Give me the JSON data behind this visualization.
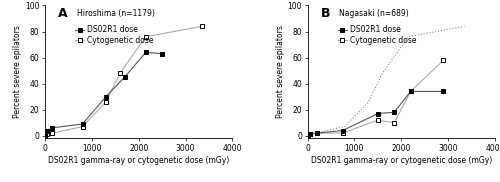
{
  "panel_A": {
    "title": "A",
    "subtitle": "Hiroshima (n=1179)",
    "ds02r1_x": [
      0,
      50,
      150,
      800,
      1300,
      1700,
      2150,
      2500
    ],
    "ds02r1_y": [
      0,
      4,
      6,
      9,
      30,
      45,
      64,
      63
    ],
    "cyto_x": [
      0,
      50,
      150,
      800,
      1300,
      1600,
      2150,
      3350
    ],
    "cyto_y": [
      0,
      1,
      2,
      7,
      26,
      48,
      76,
      84
    ]
  },
  "panel_B": {
    "title": "B",
    "subtitle": "Nagasaki (n=689)",
    "ds02r1_x": [
      0,
      50,
      200,
      750,
      1500,
      1850,
      2200,
      2900
    ],
    "ds02r1_y": [
      0,
      1,
      2,
      4,
      17,
      18,
      34,
      34
    ],
    "cyto_x": [
      0,
      50,
      200,
      750,
      1500,
      1850,
      2200,
      2900
    ],
    "cyto_y": [
      0,
      1,
      2,
      2,
      12,
      10,
      34,
      58
    ],
    "hiroshima_cyto_x": [
      0,
      50,
      150,
      800,
      1300,
      1600,
      2150,
      3350
    ],
    "hiroshima_cyto_y": [
      0,
      1,
      2,
      7,
      26,
      48,
      76,
      84
    ]
  },
  "xlabel": "DS02R1 gamma-ray or cytogenetic dose (mGy)",
  "ylabel": "Percent severe epilators",
  "xlim": [
    0,
    4000
  ],
  "ylim": [
    -2,
    100
  ],
  "xticks": [
    0,
    1000,
    2000,
    3000,
    4000
  ],
  "yticks": [
    0,
    20,
    40,
    60,
    80,
    100
  ],
  "legend_ds02r1": "DS02R1 dose",
  "legend_cyto": "Cytogenetic dose",
  "fontsize_label": 5.5,
  "fontsize_tick": 5.5,
  "fontsize_legend": 5.5,
  "fontsize_subtitle": 5.5,
  "fontsize_title": 9,
  "line_color_dark": "#555555",
  "line_color_light": "#aaaaaa",
  "dot_color": "#888888"
}
